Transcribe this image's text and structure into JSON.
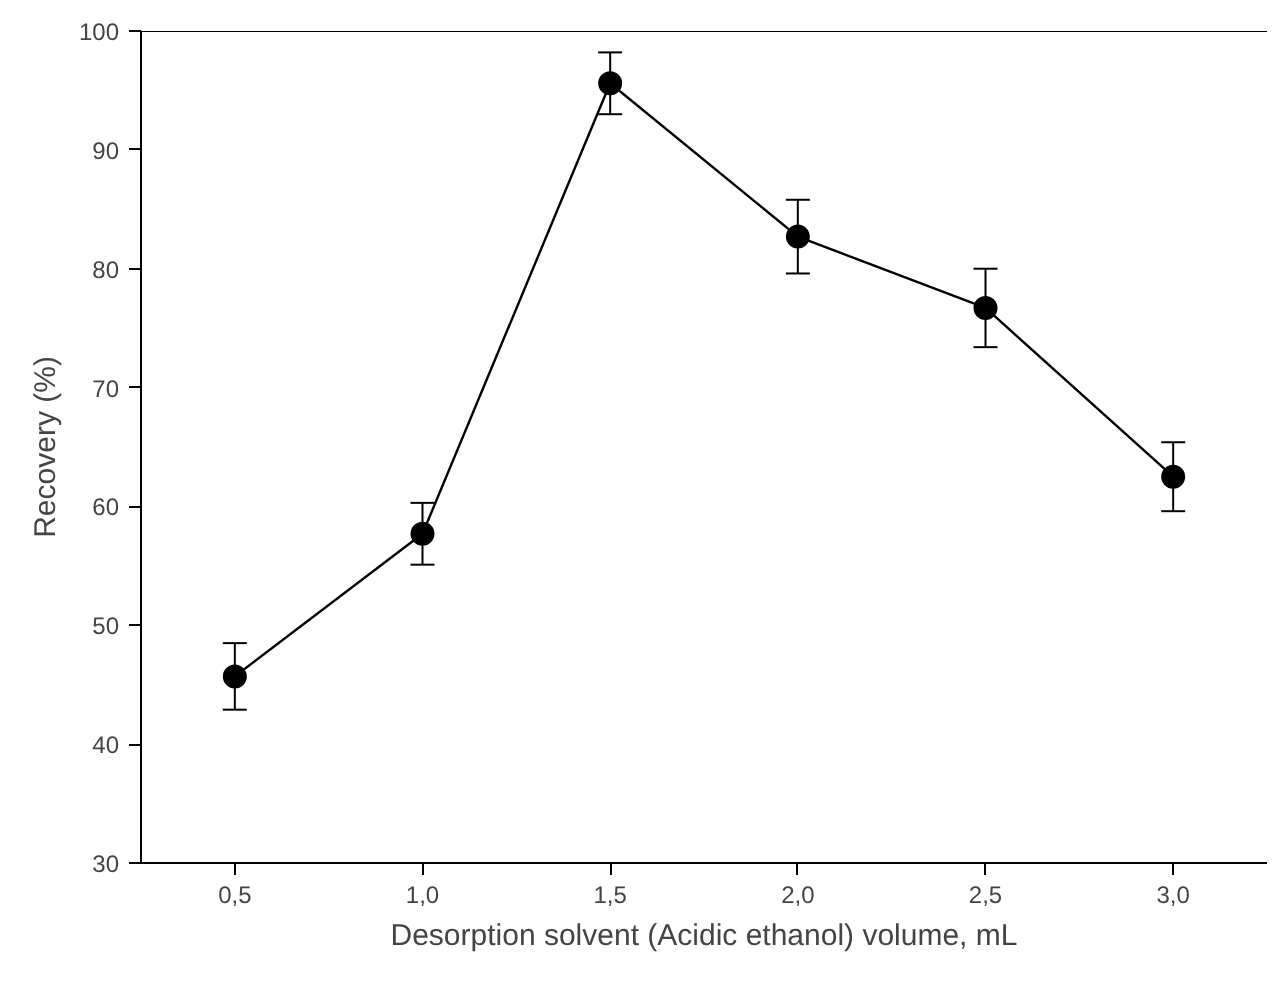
{
  "chart_data": {
    "type": "line",
    "xlabel": "Desorption solvent (Acidic ethanol) volume, mL",
    "ylabel": "Recovery (%)",
    "x": [
      0.5,
      1.0,
      1.5,
      2.0,
      2.5,
      3.0
    ],
    "series": [
      {
        "color": "#000000",
        "values": [
          45.7,
          57.7,
          95.6,
          82.7,
          76.7,
          62.5
        ],
        "errors": [
          2.8,
          2.6,
          2.6,
          3.1,
          3.3,
          2.9
        ]
      }
    ],
    "xlim": [
      0.25,
      3.25
    ],
    "xticks": [
      {
        "value": 0.5,
        "label": "0,5"
      },
      {
        "value": 1.0,
        "label": "1,0"
      },
      {
        "value": 1.5,
        "label": "1,5"
      },
      {
        "value": 2.0,
        "label": "2,0"
      },
      {
        "value": 2.5,
        "label": "2,5"
      },
      {
        "value": 3.0,
        "label": "3,0"
      }
    ],
    "ylim": [
      30,
      100
    ],
    "yticks": [
      30,
      40,
      50,
      60,
      70,
      80,
      90,
      100
    ],
    "marker": "circle",
    "line_style": "solid"
  }
}
